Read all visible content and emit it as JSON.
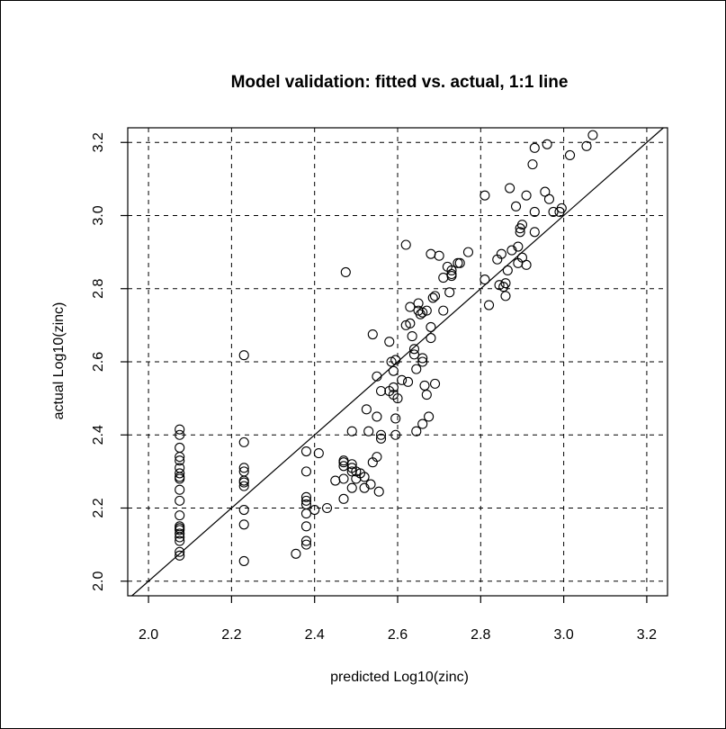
{
  "chart_data": {
    "type": "scatter",
    "title": "Model validation: fitted vs. actual, 1:1 line",
    "xlabel": "predicted Log10(zinc)",
    "ylabel": "actual Log10(zinc)",
    "xlim": [
      1.95,
      3.25
    ],
    "ylim": [
      1.96,
      3.24
    ],
    "x_ticks": [
      "2.0",
      "2.2",
      "2.4",
      "2.6",
      "2.8",
      "3.0",
      "3.2"
    ],
    "y_ticks": [
      "2.0",
      "2.2",
      "2.4",
      "2.6",
      "2.8",
      "3.0",
      "3.2"
    ],
    "grid": true,
    "reference_line": "1:1",
    "colors": {
      "points": "#000000",
      "grid": "#000000",
      "line": "#000000"
    },
    "points": [
      [
        2.075,
        2.415
      ],
      [
        2.075,
        2.4
      ],
      [
        2.075,
        2.365
      ],
      [
        2.075,
        2.34
      ],
      [
        2.075,
        2.33
      ],
      [
        2.075,
        2.31
      ],
      [
        2.075,
        2.295
      ],
      [
        2.075,
        2.285
      ],
      [
        2.075,
        2.28
      ],
      [
        2.075,
        2.25
      ],
      [
        2.075,
        2.22
      ],
      [
        2.075,
        2.18
      ],
      [
        2.075,
        2.15
      ],
      [
        2.075,
        2.145
      ],
      [
        2.075,
        2.14
      ],
      [
        2.075,
        2.13
      ],
      [
        2.075,
        2.12
      ],
      [
        2.075,
        2.11
      ],
      [
        2.075,
        2.08
      ],
      [
        2.075,
        2.07
      ],
      [
        2.23,
        2.618
      ],
      [
        2.23,
        2.38
      ],
      [
        2.23,
        2.31
      ],
      [
        2.23,
        2.3
      ],
      [
        2.23,
        2.275
      ],
      [
        2.23,
        2.27
      ],
      [
        2.23,
        2.26
      ],
      [
        2.23,
        2.195
      ],
      [
        2.23,
        2.155
      ],
      [
        2.23,
        2.055
      ],
      [
        2.355,
        2.075
      ],
      [
        2.38,
        2.355
      ],
      [
        2.38,
        2.3
      ],
      [
        2.38,
        2.23
      ],
      [
        2.38,
        2.22
      ],
      [
        2.38,
        2.21
      ],
      [
        2.38,
        2.185
      ],
      [
        2.38,
        2.15
      ],
      [
        2.38,
        2.11
      ],
      [
        2.38,
        2.1
      ],
      [
        2.4,
        2.195
      ],
      [
        2.41,
        2.35
      ],
      [
        2.43,
        2.2
      ],
      [
        2.45,
        2.275
      ],
      [
        2.47,
        2.33
      ],
      [
        2.47,
        2.325
      ],
      [
        2.47,
        2.315
      ],
      [
        2.47,
        2.28
      ],
      [
        2.47,
        2.225
      ],
      [
        2.475,
        2.845
      ],
      [
        2.49,
        2.41
      ],
      [
        2.49,
        2.32
      ],
      [
        2.49,
        2.31
      ],
      [
        2.49,
        2.3
      ],
      [
        2.49,
        2.255
      ],
      [
        2.5,
        2.3
      ],
      [
        2.5,
        2.28
      ],
      [
        2.51,
        2.295
      ],
      [
        2.52,
        2.285
      ],
      [
        2.52,
        2.255
      ],
      [
        2.525,
        2.47
      ],
      [
        2.53,
        2.41
      ],
      [
        2.535,
        2.265
      ],
      [
        2.54,
        2.675
      ],
      [
        2.54,
        2.325
      ],
      [
        2.55,
        2.56
      ],
      [
        2.55,
        2.45
      ],
      [
        2.55,
        2.34
      ],
      [
        2.555,
        2.245
      ],
      [
        2.56,
        2.52
      ],
      [
        2.56,
        2.4
      ],
      [
        2.56,
        2.39
      ],
      [
        2.58,
        2.52
      ],
      [
        2.58,
        2.655
      ],
      [
        2.585,
        2.6
      ],
      [
        2.59,
        2.575
      ],
      [
        2.59,
        2.53
      ],
      [
        2.59,
        2.51
      ],
      [
        2.595,
        2.605
      ],
      [
        2.595,
        2.445
      ],
      [
        2.595,
        2.4
      ],
      [
        2.6,
        2.5
      ],
      [
        2.61,
        2.55
      ],
      [
        2.62,
        2.92
      ],
      [
        2.62,
        2.7
      ],
      [
        2.625,
        2.545
      ],
      [
        2.63,
        2.75
      ],
      [
        2.63,
        2.705
      ],
      [
        2.635,
        2.67
      ],
      [
        2.64,
        2.635
      ],
      [
        2.64,
        2.62
      ],
      [
        2.645,
        2.41
      ],
      [
        2.645,
        2.58
      ],
      [
        2.65,
        2.76
      ],
      [
        2.65,
        2.74
      ],
      [
        2.655,
        2.73
      ],
      [
        2.66,
        2.735
      ],
      [
        2.66,
        2.61
      ],
      [
        2.66,
        2.6
      ],
      [
        2.66,
        2.43
      ],
      [
        2.665,
        2.535
      ],
      [
        2.67,
        2.74
      ],
      [
        2.67,
        2.51
      ],
      [
        2.675,
        2.45
      ],
      [
        2.68,
        2.895
      ],
      [
        2.68,
        2.695
      ],
      [
        2.68,
        2.665
      ],
      [
        2.685,
        2.775
      ],
      [
        2.69,
        2.78
      ],
      [
        2.69,
        2.54
      ],
      [
        2.7,
        2.89
      ],
      [
        2.71,
        2.83
      ],
      [
        2.71,
        2.74
      ],
      [
        2.72,
        2.86
      ],
      [
        2.725,
        2.79
      ],
      [
        2.73,
        2.85
      ],
      [
        2.73,
        2.84
      ],
      [
        2.73,
        2.835
      ],
      [
        2.745,
        2.87
      ],
      [
        2.75,
        2.87
      ],
      [
        2.77,
        2.9
      ],
      [
        2.81,
        3.055
      ],
      [
        2.81,
        2.825
      ],
      [
        2.82,
        2.755
      ],
      [
        2.84,
        2.88
      ],
      [
        2.845,
        2.81
      ],
      [
        2.85,
        2.895
      ],
      [
        2.855,
        2.805
      ],
      [
        2.86,
        2.815
      ],
      [
        2.86,
        2.78
      ],
      [
        2.865,
        2.85
      ],
      [
        2.87,
        3.075
      ],
      [
        2.875,
        2.905
      ],
      [
        2.885,
        3.025
      ],
      [
        2.89,
        2.915
      ],
      [
        2.89,
        2.87
      ],
      [
        2.895,
        2.965
      ],
      [
        2.895,
        2.955
      ],
      [
        2.9,
        2.975
      ],
      [
        2.9,
        2.885
      ],
      [
        2.91,
        3.055
      ],
      [
        2.91,
        2.865
      ],
      [
        2.925,
        3.14
      ],
      [
        2.93,
        3.185
      ],
      [
        2.93,
        3.01
      ],
      [
        2.93,
        2.955
      ],
      [
        2.955,
        3.065
      ],
      [
        2.96,
        3.195
      ],
      [
        2.965,
        3.045
      ],
      [
        2.975,
        3.01
      ],
      [
        2.99,
        3.01
      ],
      [
        2.995,
        3.02
      ],
      [
        3.015,
        3.165
      ],
      [
        3.055,
        3.19
      ],
      [
        3.07,
        3.22
      ]
    ]
  }
}
